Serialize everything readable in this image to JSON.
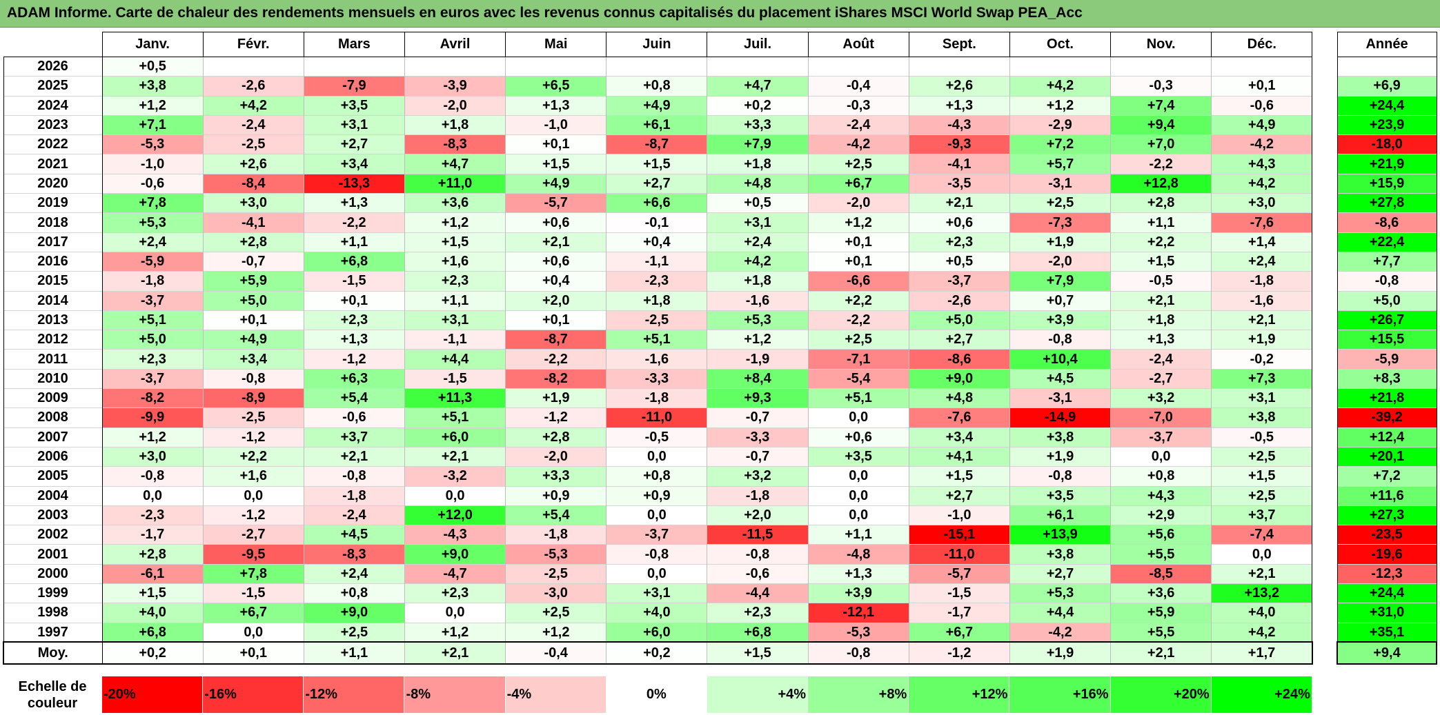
{
  "title": "ADAM Informe. Carte de chaleur des rendements mensuels en euros avec les revenus connus capitalisés du placement iShares MSCI World Swap PEA_Acc",
  "year_header": "",
  "annual_header": "Année",
  "average_label": "Moy.",
  "scale_label": "Echelle de couleur",
  "colors": {
    "negative_max": "#ff0000",
    "neutral": "#ffffff",
    "positive_max": "#00ff00",
    "title_bg": "#8bc97b"
  },
  "chart_data": {
    "type": "heatmap",
    "title": "ADAM Informe. Carte de chaleur des rendements mensuels en euros avec les revenus connus capitalisés du placement iShares MSCI World Swap PEA_Acc",
    "months": [
      "Janv.",
      "Févr.",
      "Mars",
      "Avril",
      "Mai",
      "Juin",
      "Juil.",
      "Août",
      "Sept.",
      "Oct.",
      "Nov.",
      "Déc."
    ],
    "rows": [
      {
        "year": "2026",
        "values": [
          "+0,5",
          "",
          "",
          "",
          "",
          "",
          "",
          "",
          "",
          "",
          "",
          ""
        ],
        "annual": ""
      },
      {
        "year": "2025",
        "values": [
          "+3,8",
          "-2,6",
          "-7,9",
          "-3,9",
          "+6,5",
          "+0,8",
          "+4,7",
          "-0,4",
          "+2,6",
          "+4,2",
          "-0,3",
          "+0,1"
        ],
        "annual": "+6,9"
      },
      {
        "year": "2024",
        "values": [
          "+1,2",
          "+4,2",
          "+3,5",
          "-2,0",
          "+1,3",
          "+4,9",
          "+0,2",
          "-0,3",
          "+1,3",
          "+1,2",
          "+7,4",
          "-0,6"
        ],
        "annual": "+24,4"
      },
      {
        "year": "2023",
        "values": [
          "+7,1",
          "-2,4",
          "+3,1",
          "+1,8",
          "-1,0",
          "+6,1",
          "+3,3",
          "-2,4",
          "-4,3",
          "-2,9",
          "+9,4",
          "+4,9"
        ],
        "annual": "+23,9"
      },
      {
        "year": "2022",
        "values": [
          "-5,3",
          "-2,5",
          "+2,7",
          "-8,3",
          "+0,1",
          "-8,7",
          "+7,9",
          "-4,2",
          "-9,3",
          "+7,2",
          "+7,0",
          "-4,2"
        ],
        "annual": "-18,0"
      },
      {
        "year": "2021",
        "values": [
          "-1,0",
          "+2,6",
          "+3,4",
          "+4,7",
          "+1,5",
          "+1,5",
          "+1,8",
          "+2,5",
          "-4,1",
          "+5,7",
          "-2,2",
          "+4,3"
        ],
        "annual": "+21,9"
      },
      {
        "year": "2020",
        "values": [
          "-0,6",
          "-8,4",
          "-13,3",
          "+11,0",
          "+4,9",
          "+2,7",
          "+4,8",
          "+6,7",
          "-3,5",
          "-3,1",
          "+12,8",
          "+4,2"
        ],
        "annual": "+15,9"
      },
      {
        "year": "2019",
        "values": [
          "+7,8",
          "+3,0",
          "+1,3",
          "+3,6",
          "-5,7",
          "+6,6",
          "+0,5",
          "-2,0",
          "+2,1",
          "+2,5",
          "+2,8",
          "+3,0"
        ],
        "annual": "+27,8"
      },
      {
        "year": "2018",
        "values": [
          "+5,3",
          "-4,1",
          "-2,2",
          "+1,2",
          "+0,6",
          "-0,1",
          "+3,1",
          "+1,2",
          "+0,6",
          "-7,3",
          "+1,1",
          "-7,6"
        ],
        "annual": "-8,6"
      },
      {
        "year": "2017",
        "values": [
          "+2,4",
          "+2,8",
          "+1,1",
          "+1,5",
          "+2,1",
          "+0,4",
          "+2,4",
          "+0,1",
          "+2,3",
          "+1,9",
          "+2,2",
          "+1,4"
        ],
        "annual": "+22,4"
      },
      {
        "year": "2016",
        "values": [
          "-5,9",
          "-0,7",
          "+6,8",
          "+1,6",
          "+0,6",
          "-1,1",
          "+4,2",
          "+0,1",
          "+0,5",
          "-2,0",
          "+1,5",
          "+2,4"
        ],
        "annual": "+7,7"
      },
      {
        "year": "2015",
        "values": [
          "-1,8",
          "+5,9",
          "-1,5",
          "+2,3",
          "+0,4",
          "-2,3",
          "+1,8",
          "-6,6",
          "-3,7",
          "+7,9",
          "-0,5",
          "-1,8"
        ],
        "annual": "-0,8"
      },
      {
        "year": "2014",
        "values": [
          "-3,7",
          "+5,0",
          "+0,1",
          "+1,1",
          "+2,0",
          "+1,8",
          "-1,6",
          "+2,2",
          "-2,6",
          "+0,7",
          "+2,1",
          "-1,6"
        ],
        "annual": "+5,0"
      },
      {
        "year": "2013",
        "values": [
          "+5,1",
          "+0,1",
          "+2,3",
          "+3,1",
          "+0,1",
          "-2,5",
          "+5,3",
          "-2,2",
          "+5,0",
          "+3,9",
          "+1,8",
          "+2,1"
        ],
        "annual": "+26,7"
      },
      {
        "year": "2012",
        "values": [
          "+5,0",
          "+4,9",
          "+1,3",
          "-1,1",
          "-8,7",
          "+5,1",
          "+1,2",
          "+2,5",
          "+2,7",
          "-0,8",
          "+1,3",
          "+1,9"
        ],
        "annual": "+15,5"
      },
      {
        "year": "2011",
        "values": [
          "+2,3",
          "+3,4",
          "-1,2",
          "+4,4",
          "-2,2",
          "-1,6",
          "-1,9",
          "-7,1",
          "-8,6",
          "+10,4",
          "-2,4",
          "-0,2"
        ],
        "annual": "-5,9"
      },
      {
        "year": "2010",
        "values": [
          "-3,7",
          "-0,8",
          "+6,3",
          "-1,5",
          "-8,2",
          "-3,3",
          "+8,4",
          "-5,4",
          "+9,0",
          "+4,5",
          "-2,7",
          "+7,3"
        ],
        "annual": "+8,3"
      },
      {
        "year": "2009",
        "values": [
          "-8,2",
          "-8,9",
          "+5,4",
          "+11,3",
          "+1,9",
          "-1,8",
          "+9,3",
          "+5,1",
          "+4,8",
          "-3,1",
          "+3,2",
          "+3,1"
        ],
        "annual": "+21,8"
      },
      {
        "year": "2008",
        "values": [
          "-9,9",
          "-2,5",
          "-0,6",
          "+5,1",
          "-1,2",
          "-11,0",
          "-0,7",
          "0,0",
          "-7,6",
          "-14,9",
          "-7,0",
          "+3,8"
        ],
        "annual": "-39,2"
      },
      {
        "year": "2007",
        "values": [
          "+1,2",
          "-1,2",
          "+3,7",
          "+6,0",
          "+2,8",
          "-0,5",
          "-3,3",
          "+0,6",
          "+3,4",
          "+3,8",
          "-3,7",
          "-0,5"
        ],
        "annual": "+12,4"
      },
      {
        "year": "2006",
        "values": [
          "+3,0",
          "+2,2",
          "+2,1",
          "+2,1",
          "-2,0",
          "0,0",
          "-0,7",
          "+3,5",
          "+4,1",
          "+1,9",
          "0,0",
          "+2,5"
        ],
        "annual": "+20,1"
      },
      {
        "year": "2005",
        "values": [
          "-0,8",
          "+1,6",
          "-0,8",
          "-3,2",
          "+3,3",
          "+0,8",
          "+3,2",
          "0,0",
          "+1,5",
          "-0,8",
          "+0,8",
          "+1,5"
        ],
        "annual": "+7,2"
      },
      {
        "year": "2004",
        "values": [
          "0,0",
          "0,0",
          "-1,8",
          "0,0",
          "+0,9",
          "+0,9",
          "-1,8",
          "0,0",
          "+2,7",
          "+3,5",
          "+4,3",
          "+2,5"
        ],
        "annual": "+11,6"
      },
      {
        "year": "2003",
        "values": [
          "-2,3",
          "-1,2",
          "-2,4",
          "+12,0",
          "+5,4",
          "0,0",
          "+2,0",
          "0,0",
          "-1,0",
          "+6,1",
          "+2,9",
          "+3,7"
        ],
        "annual": "+27,3"
      },
      {
        "year": "2002",
        "values": [
          "-1,7",
          "-2,7",
          "+4,5",
          "-4,3",
          "-1,8",
          "-3,7",
          "-11,5",
          "+1,1",
          "-15,1",
          "+13,9",
          "+5,6",
          "-7,4"
        ],
        "annual": "-23,5"
      },
      {
        "year": "2001",
        "values": [
          "+2,8",
          "-9,5",
          "-8,3",
          "+9,0",
          "-5,3",
          "-0,8",
          "-0,8",
          "-4,8",
          "-11,0",
          "+3,8",
          "+5,5",
          "0,0"
        ],
        "annual": "-19,6"
      },
      {
        "year": "2000",
        "values": [
          "-6,1",
          "+7,8",
          "+2,4",
          "-4,7",
          "-2,5",
          "0,0",
          "-0,6",
          "+1,3",
          "-5,7",
          "+2,7",
          "-8,5",
          "+2,1"
        ],
        "annual": "-12,3"
      },
      {
        "year": "1999",
        "values": [
          "+1,5",
          "-1,5",
          "+0,8",
          "+2,3",
          "-3,0",
          "+3,1",
          "-4,4",
          "+3,9",
          "-1,5",
          "+5,3",
          "+3,6",
          "+13,2"
        ],
        "annual": "+24,4"
      },
      {
        "year": "1998",
        "values": [
          "+4,0",
          "+6,7",
          "+9,0",
          "0,0",
          "+2,5",
          "+4,0",
          "+2,3",
          "-12,1",
          "-1,7",
          "+4,4",
          "+5,9",
          "+4,0"
        ],
        "annual": "+31,0"
      },
      {
        "year": "1997",
        "values": [
          "+6,8",
          "0,0",
          "+2,5",
          "+1,2",
          "+1,2",
          "+6,0",
          "+6,8",
          "-5,3",
          "+6,7",
          "-4,2",
          "+5,5",
          "+4,2"
        ],
        "annual": "+35,1"
      }
    ],
    "averages": [
      "+0,2",
      "+0,1",
      "+1,1",
      "+2,1",
      "-0,4",
      "+0,2",
      "+1,5",
      "-0,8",
      "-1,2",
      "+1,9",
      "+2,1",
      "+1,7"
    ],
    "average_annual": "+9,4",
    "color_scale": [
      {
        "label": "-20%",
        "value": -20,
        "align": "left",
        "color": "#ff0000"
      },
      {
        "label": "-16%",
        "value": -16,
        "align": "left",
        "color": "#ff3333"
      },
      {
        "label": "-12%",
        "value": -12,
        "align": "left",
        "color": "#ff6666"
      },
      {
        "label": "-8%",
        "value": -8,
        "align": "left",
        "color": "#ff9999"
      },
      {
        "label": "-4%",
        "value": -4,
        "align": "left",
        "color": "#ffcccc"
      },
      {
        "label": "0%",
        "value": 0,
        "align": "center",
        "color": "#ffffff"
      },
      {
        "label": "+4%",
        "value": 4,
        "align": "right",
        "color": "#ccffcc"
      },
      {
        "label": "+8%",
        "value": 8,
        "align": "right",
        "color": "#99ff99"
      },
      {
        "label": "+12%",
        "value": 12,
        "align": "right",
        "color": "#66ff66"
      },
      {
        "label": "+16%",
        "value": 16,
        "align": "right",
        "color": "#55ff55"
      },
      {
        "label": "+20%",
        "value": 20,
        "align": "right",
        "color": "#33ff33"
      },
      {
        "label": "+24%",
        "value": 24,
        "align": "right",
        "color": "#00ff00"
      }
    ],
    "monthly_color_range": [
      -15,
      15
    ],
    "annual_color_range": [
      -20,
      20
    ]
  }
}
